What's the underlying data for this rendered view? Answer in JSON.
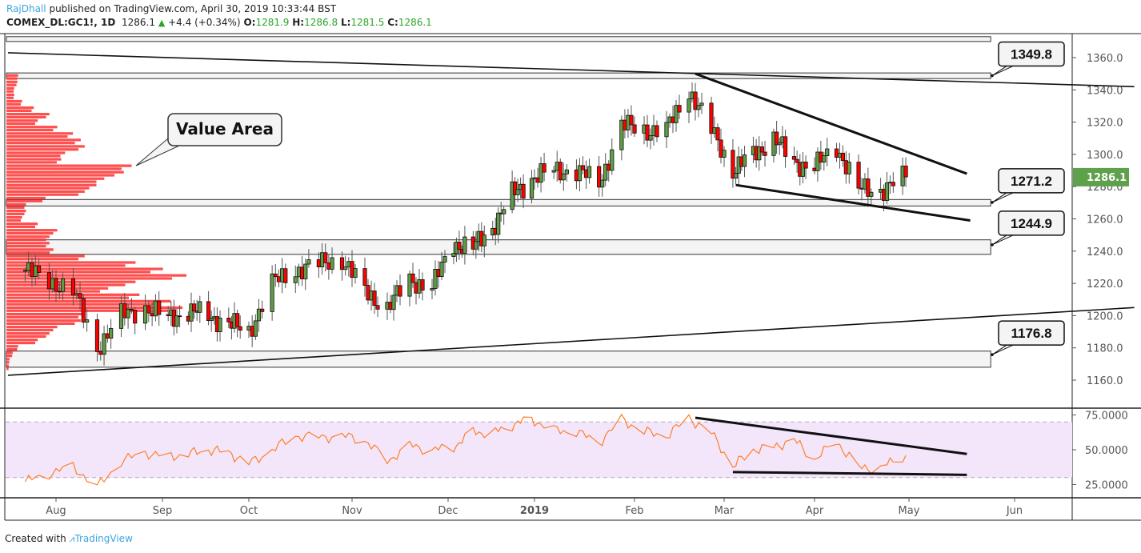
{
  "header": {
    "author": "RajDhall",
    "published": " published on TradingView.com, April 30, 2019 10:33:44 BST",
    "symbol": "COMEX_DL:GC1!, 1D",
    "last": "1286.1",
    "change": "+4.4 (+0.34%)",
    "o_label": "O:",
    "o": "1281.9",
    "h_label": "H:",
    "h": "1286.8",
    "l_label": "L:",
    "l": "1281.5",
    "c_label": "C:",
    "c": "1286.1"
  },
  "footer": {
    "created": "Created with",
    "brand": "TradingView"
  },
  "colors": {
    "up": "#5f9c45",
    "down": "#ff0000",
    "profile": "#ff3b3b",
    "rsi": "#ff7f27",
    "rsi_band": "#f3e6fb",
    "last_price": "#5fa04b"
  },
  "chart_data": [
    {
      "type": "candlestick",
      "ylim": [
        1150,
        1375
      ],
      "price_ticks": [
        "1360.0",
        "1340.0",
        "1320.0",
        "1300.0",
        "1280.0",
        "1260.0",
        "1240.0",
        "1220.0",
        "1200.0",
        "1180.0",
        "1160.0"
      ],
      "time_ticks": [
        {
          "label": "Aug",
          "date": "2018-08-01"
        },
        {
          "label": "Sep",
          "date": "2018-09-01"
        },
        {
          "label": "Oct",
          "date": "2018-10-01"
        },
        {
          "label": "Nov",
          "date": "2018-11-01"
        },
        {
          "label": "Dec",
          "date": "2018-12-01"
        },
        {
          "label": "2019",
          "date": "2019-01-01",
          "bold": true
        },
        {
          "label": "Feb",
          "date": "2019-02-01"
        },
        {
          "label": "Mar",
          "date": "2019-03-01"
        },
        {
          "label": "Apr",
          "date": "2019-04-01"
        },
        {
          "label": "May",
          "date": "2019-05-01"
        },
        {
          "label": "Jun",
          "date": "2019-06-01"
        }
      ],
      "last_price": "1286.1",
      "closes": [
        [
          "2018-07-23",
          1228
        ],
        [
          "2018-07-30",
          1222
        ],
        [
          "2018-08-06",
          1215
        ],
        [
          "2018-08-13",
          1180
        ],
        [
          "2018-08-20",
          1200
        ],
        [
          "2018-08-27",
          1205
        ],
        [
          "2018-09-03",
          1198
        ],
        [
          "2018-09-10",
          1203
        ],
        [
          "2018-09-17",
          1200
        ],
        [
          "2018-09-24",
          1195
        ],
        [
          "2018-10-01",
          1190
        ],
        [
          "2018-10-08",
          1220
        ],
        [
          "2018-10-15",
          1228
        ],
        [
          "2018-10-22",
          1232
        ],
        [
          "2018-10-29",
          1235
        ],
        [
          "2018-11-05",
          1215
        ],
        [
          "2018-11-12",
          1205
        ],
        [
          "2018-11-19",
          1222
        ],
        [
          "2018-11-26",
          1218
        ],
        [
          "2018-12-03",
          1245
        ],
        [
          "2018-12-10",
          1242
        ],
        [
          "2018-12-17",
          1255
        ],
        [
          "2018-12-24",
          1275
        ],
        [
          "2018-12-31",
          1285
        ],
        [
          "2019-01-07",
          1290
        ],
        [
          "2019-01-14",
          1290
        ],
        [
          "2019-01-21",
          1282
        ],
        [
          "2019-01-28",
          1318
        ],
        [
          "2019-02-04",
          1315
        ],
        [
          "2019-02-11",
          1315
        ],
        [
          "2019-02-18",
          1340
        ],
        [
          "2019-02-25",
          1315
        ],
        [
          "2019-03-04",
          1290
        ],
        [
          "2019-03-11",
          1300
        ],
        [
          "2019-03-18",
          1310
        ],
        [
          "2019-03-25",
          1295
        ],
        [
          "2019-04-01",
          1292
        ],
        [
          "2019-04-08",
          1305
        ],
        [
          "2019-04-15",
          1278
        ],
        [
          "2019-04-22",
          1278
        ],
        [
          "2019-04-30",
          1286
        ]
      ],
      "zones": [
        [
          1370,
          1373
        ],
        [
          1347,
          1350.5
        ],
        [
          1268,
          1272
        ],
        [
          1238,
          1247
        ],
        [
          1168,
          1178
        ]
      ],
      "zone_end": "2019-05-25",
      "trendlines": [
        {
          "from": [
            "2018-07-18",
            1363
          ],
          "to": [
            "2019-07-05",
            1342
          ],
          "weight": "thin"
        },
        {
          "from": [
            "2018-07-18",
            1163
          ],
          "to": [
            "2019-07-05",
            1205
          ],
          "weight": "thin"
        },
        {
          "from": [
            "2019-02-20",
            1350
          ],
          "to": [
            "2019-05-18",
            1288
          ],
          "weight": "thick"
        },
        {
          "from": [
            "2019-03-05",
            1281
          ],
          "to": [
            "2019-05-19",
            1259
          ],
          "weight": "thick"
        }
      ],
      "price_labels": [
        {
          "text": "1349.8",
          "price": 1349.8
        },
        {
          "text": "1271.2",
          "price": 1271.2
        },
        {
          "text": "1244.9",
          "price": 1244.9
        },
        {
          "text": "1176.8",
          "price": 1176.8
        }
      ],
      "annotation": {
        "text": "Value Area",
        "price": 1293
      },
      "volume_profile": {
        "bin_size": 4,
        "top": 1350,
        "volumes": [
          15,
          14,
          10,
          10,
          20,
          35,
          55,
          40,
          65,
          85,
          95,
          100,
          75,
          70,
          160,
          150,
          125,
          115,
          100,
          50,
          25,
          25,
          20,
          40,
          65,
          55,
          55,
          60,
          100,
          165,
          200,
          230,
          165,
          130,
          170,
          210,
          225,
          100,
          95,
          65,
          55,
          40,
          15,
          8,
          4,
          3
        ]
      }
    },
    {
      "type": "line",
      "ylim": [
        21,
        79
      ],
      "ticks": [
        "75.0000",
        "50.0000",
        "25.0000"
      ],
      "band": [
        30,
        70
      ],
      "values": [
        [
          "2018-07-23",
          27
        ],
        [
          "2018-07-30",
          33
        ],
        [
          "2018-08-06",
          38
        ],
        [
          "2018-08-13",
          23
        ],
        [
          "2018-08-20",
          42
        ],
        [
          "2018-08-27",
          48
        ],
        [
          "2018-09-03",
          45
        ],
        [
          "2018-09-10",
          47
        ],
        [
          "2018-09-17",
          50
        ],
        [
          "2018-09-24",
          48
        ],
        [
          "2018-10-01",
          40
        ],
        [
          "2018-10-08",
          50
        ],
        [
          "2018-10-15",
          60
        ],
        [
          "2018-10-22",
          59
        ],
        [
          "2018-10-29",
          60
        ],
        [
          "2018-11-05",
          57
        ],
        [
          "2018-11-12",
          42
        ],
        [
          "2018-11-19",
          53
        ],
        [
          "2018-11-26",
          50
        ],
        [
          "2018-12-03",
          52
        ],
        [
          "2018-12-10",
          63
        ],
        [
          "2018-12-17",
          62
        ],
        [
          "2018-12-24",
          68
        ],
        [
          "2018-12-31",
          72
        ],
        [
          "2019-01-07",
          64
        ],
        [
          "2019-01-14",
          63
        ],
        [
          "2019-01-21",
          55
        ],
        [
          "2019-01-28",
          72
        ],
        [
          "2019-02-04",
          63
        ],
        [
          "2019-02-11",
          60
        ],
        [
          "2019-02-18",
          73
        ],
        [
          "2019-02-25",
          62
        ],
        [
          "2019-03-04",
          38
        ],
        [
          "2019-03-11",
          50
        ],
        [
          "2019-03-18",
          52
        ],
        [
          "2019-03-25",
          57
        ],
        [
          "2019-04-01",
          43
        ],
        [
          "2019-04-08",
          56
        ],
        [
          "2019-04-15",
          37
        ],
        [
          "2019-04-22",
          37
        ],
        [
          "2019-04-30",
          46
        ]
      ],
      "trendlines": [
        {
          "from": [
            "2019-02-20",
            73
          ],
          "to": [
            "2019-05-18",
            47
          ]
        },
        {
          "from": [
            "2019-03-04",
            34
          ],
          "to": [
            "2019-05-18",
            32
          ]
        }
      ]
    }
  ]
}
